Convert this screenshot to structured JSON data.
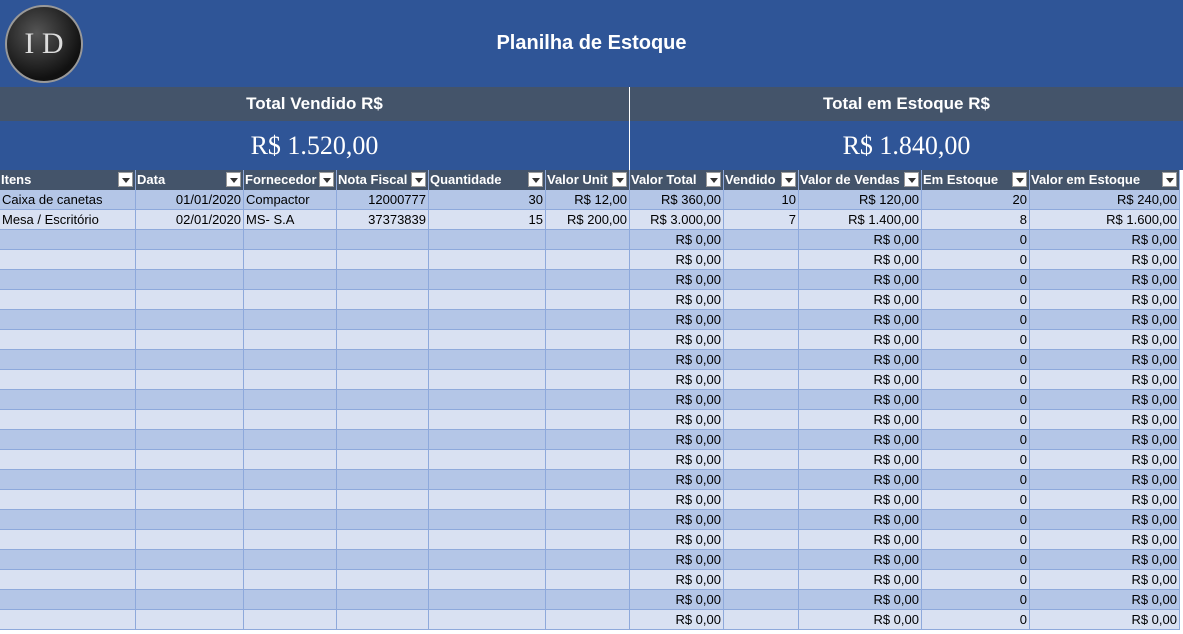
{
  "header": {
    "logo": "I D",
    "title": "Planilha de Estoque"
  },
  "summary": [
    {
      "label": "Total Vendido R$",
      "value": "R$ 1.520,00"
    },
    {
      "label": "Total em Estoque R$",
      "value": "R$ 1.840,00"
    }
  ],
  "table": {
    "columns": [
      "Itens",
      "Data",
      "Fornecedor",
      "Nota Fiscal",
      "Quantidade",
      "Valor Unit",
      "Valor Total",
      "Vendido",
      "Valor de Vendas",
      "Em Estoque",
      "Valor em Estoque"
    ],
    "rows": [
      [
        "Caixa de canetas",
        "01/01/2020",
        "Compactor",
        12000777,
        30,
        "R$ 12,00",
        "R$ 360,00",
        10,
        "R$ 120,00",
        20,
        "R$ 240,00"
      ],
      [
        "Mesa / Escritório",
        "02/01/2020",
        "MS- S.A",
        37373839,
        15,
        "R$ 200,00",
        "R$ 3.000,00",
        7,
        "R$ 1.400,00",
        8,
        "R$ 1.600,00"
      ],
      [
        null,
        null,
        null,
        null,
        null,
        null,
        "R$ 0,00",
        null,
        "R$ 0,00",
        0,
        "R$ 0,00"
      ],
      [
        null,
        null,
        null,
        null,
        null,
        null,
        "R$ 0,00",
        null,
        "R$ 0,00",
        0,
        "R$ 0,00"
      ],
      [
        null,
        null,
        null,
        null,
        null,
        null,
        "R$ 0,00",
        null,
        "R$ 0,00",
        0,
        "R$ 0,00"
      ],
      [
        null,
        null,
        null,
        null,
        null,
        null,
        "R$ 0,00",
        null,
        "R$ 0,00",
        0,
        "R$ 0,00"
      ],
      [
        null,
        null,
        null,
        null,
        null,
        null,
        "R$ 0,00",
        null,
        "R$ 0,00",
        0,
        "R$ 0,00"
      ],
      [
        null,
        null,
        null,
        null,
        null,
        null,
        "R$ 0,00",
        null,
        "R$ 0,00",
        0,
        "R$ 0,00"
      ],
      [
        null,
        null,
        null,
        null,
        null,
        null,
        "R$ 0,00",
        null,
        "R$ 0,00",
        0,
        "R$ 0,00"
      ],
      [
        null,
        null,
        null,
        null,
        null,
        null,
        "R$ 0,00",
        null,
        "R$ 0,00",
        0,
        "R$ 0,00"
      ],
      [
        null,
        null,
        null,
        null,
        null,
        null,
        "R$ 0,00",
        null,
        "R$ 0,00",
        0,
        "R$ 0,00"
      ],
      [
        null,
        null,
        null,
        null,
        null,
        null,
        "R$ 0,00",
        null,
        "R$ 0,00",
        0,
        "R$ 0,00"
      ],
      [
        null,
        null,
        null,
        null,
        null,
        null,
        "R$ 0,00",
        null,
        "R$ 0,00",
        0,
        "R$ 0,00"
      ],
      [
        null,
        null,
        null,
        null,
        null,
        null,
        "R$ 0,00",
        null,
        "R$ 0,00",
        0,
        "R$ 0,00"
      ],
      [
        null,
        null,
        null,
        null,
        null,
        null,
        "R$ 0,00",
        null,
        "R$ 0,00",
        0,
        "R$ 0,00"
      ],
      [
        null,
        null,
        null,
        null,
        null,
        null,
        "R$ 0,00",
        null,
        "R$ 0,00",
        0,
        "R$ 0,00"
      ],
      [
        null,
        null,
        null,
        null,
        null,
        null,
        "R$ 0,00",
        null,
        "R$ 0,00",
        0,
        "R$ 0,00"
      ],
      [
        null,
        null,
        null,
        null,
        null,
        null,
        "R$ 0,00",
        null,
        "R$ 0,00",
        0,
        "R$ 0,00"
      ],
      [
        null,
        null,
        null,
        null,
        null,
        null,
        "R$ 0,00",
        null,
        "R$ 0,00",
        0,
        "R$ 0,00"
      ],
      [
        null,
        null,
        null,
        null,
        null,
        null,
        "R$ 0,00",
        null,
        "R$ 0,00",
        0,
        "R$ 0,00"
      ],
      [
        null,
        null,
        null,
        null,
        null,
        null,
        "R$ 0,00",
        null,
        "R$ 0,00",
        0,
        "R$ 0,00"
      ],
      [
        null,
        null,
        null,
        null,
        null,
        null,
        "R$ 0,00",
        null,
        "R$ 0,00",
        0,
        "R$ 0,00"
      ]
    ]
  }
}
